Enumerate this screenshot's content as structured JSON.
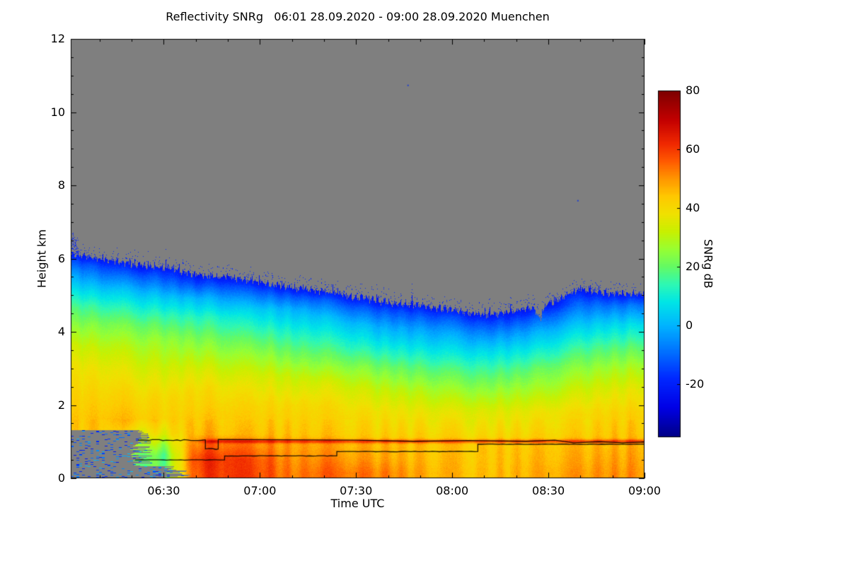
{
  "chart_data": {
    "type": "heatmap",
    "title": "Reflectivity SNRg   06:01 28.09.2020 - 09:00 28.09.2020 Muenchen",
    "x_axis": {
      "label": "Time UTC",
      "range_minutes": [
        361,
        540
      ],
      "tick_minutes": [
        390,
        420,
        450,
        480,
        510,
        540
      ],
      "tick_labels": [
        "06:30",
        "07:00",
        "07:30",
        "08:00",
        "08:30",
        "09:00"
      ],
      "minor_tick_step_minutes": 10
    },
    "y_axis": {
      "label": "Height km",
      "range_km": [
        0,
        12
      ],
      "tick_values": [
        0,
        2,
        4,
        6,
        8,
        10,
        12
      ],
      "minor_tick_step_km": 0.5
    },
    "colorbar": {
      "label": "SNRg dB",
      "range": [
        -38,
        80
      ],
      "tick_values": [
        -20,
        0,
        20,
        40,
        60,
        80
      ],
      "colormap_stops": [
        [
          -38,
          "#000085"
        ],
        [
          -28,
          "#0000E6"
        ],
        [
          -18,
          "#0028FF"
        ],
        [
          -8,
          "#0078FF"
        ],
        [
          0,
          "#00B4FF"
        ],
        [
          8,
          "#00E6E6"
        ],
        [
          14,
          "#2EF8B4"
        ],
        [
          20,
          "#64FA64"
        ],
        [
          26,
          "#98FF32"
        ],
        [
          32,
          "#C8F000"
        ],
        [
          38,
          "#F0E100"
        ],
        [
          44,
          "#FFC800"
        ],
        [
          50,
          "#FF9600"
        ],
        [
          56,
          "#FF5A00"
        ],
        [
          62,
          "#F02800"
        ],
        [
          70,
          "#C30000"
        ],
        [
          80,
          "#7D0000"
        ]
      ]
    },
    "nodata_color": "#7F7F7F",
    "nodata_regions": [
      {
        "t_minutes": [
          361,
          383
        ],
        "h_km": [
          0,
          1.3
        ]
      },
      {
        "t_minutes": [
          361,
          394
        ],
        "h_km": [
          0,
          0.32
        ]
      }
    ],
    "bright_band": {
      "h_km": 1.0,
      "halfwidth_km": 0.055,
      "amp_db": 14,
      "t_start_minutes": 399
    },
    "cloud_top_notch": {
      "t_minutes": 507.5,
      "depth_km": 0.35,
      "width_minutes": 1.2
    },
    "isolated_specks": [
      [
        466,
        10.75
      ],
      [
        519,
        7.6
      ]
    ],
    "columns": [
      {
        "t": 361,
        "top": 6.15,
        "profile": [
          [
            0.2,
            40
          ],
          [
            0.8,
            42
          ],
          [
            1.5,
            44
          ],
          [
            2.2,
            42
          ],
          [
            3.0,
            38
          ],
          [
            3.6,
            33
          ],
          [
            4.2,
            24
          ],
          [
            4.7,
            17
          ],
          [
            5.1,
            8
          ],
          [
            5.55,
            -2
          ],
          [
            5.9,
            -12
          ],
          [
            6.15,
            -22
          ]
        ]
      },
      {
        "t": 370,
        "top": 6.0,
        "profile": [
          [
            0.2,
            42
          ],
          [
            0.8,
            44
          ],
          [
            1.6,
            45
          ],
          [
            2.4,
            41
          ],
          [
            3.0,
            37
          ],
          [
            3.6,
            31
          ],
          [
            4.2,
            23
          ],
          [
            4.7,
            14
          ],
          [
            5.1,
            5
          ],
          [
            5.5,
            -6
          ],
          [
            5.8,
            -14
          ],
          [
            6.0,
            -22
          ]
        ]
      },
      {
        "t": 380,
        "top": 5.85,
        "profile": [
          [
            0.2,
            22
          ],
          [
            0.6,
            24
          ],
          [
            1.0,
            34
          ],
          [
            1.6,
            45
          ],
          [
            2.4,
            40
          ],
          [
            3.0,
            35
          ],
          [
            3.6,
            29
          ],
          [
            4.2,
            21
          ],
          [
            4.7,
            11
          ],
          [
            5.1,
            2
          ],
          [
            5.5,
            -10
          ],
          [
            5.85,
            -22
          ]
        ]
      },
      {
        "t": 390,
        "top": 5.75,
        "profile": [
          [
            0.2,
            20
          ],
          [
            0.6,
            18
          ],
          [
            0.9,
            26
          ],
          [
            1.2,
            36
          ],
          [
            1.6,
            42
          ],
          [
            2.2,
            40
          ],
          [
            3.0,
            33
          ],
          [
            3.8,
            25
          ],
          [
            4.4,
            15
          ],
          [
            4.9,
            4
          ],
          [
            5.3,
            -8
          ],
          [
            5.6,
            -16
          ],
          [
            5.75,
            -22
          ]
        ]
      },
      {
        "t": 400,
        "top": 5.55,
        "profile": [
          [
            0.15,
            58
          ],
          [
            0.5,
            60
          ],
          [
            0.9,
            54
          ],
          [
            1.2,
            47
          ],
          [
            1.8,
            43
          ],
          [
            2.4,
            40
          ],
          [
            3.0,
            34
          ],
          [
            3.8,
            23
          ],
          [
            4.4,
            13
          ],
          [
            4.9,
            1
          ],
          [
            5.25,
            -12
          ],
          [
            5.55,
            -22
          ]
        ]
      },
      {
        "t": 410,
        "top": 5.5,
        "profile": [
          [
            0.15,
            62
          ],
          [
            0.5,
            62
          ],
          [
            0.9,
            55
          ],
          [
            1.2,
            46
          ],
          [
            1.8,
            43
          ],
          [
            2.5,
            38
          ],
          [
            3.2,
            29
          ],
          [
            3.8,
            21
          ],
          [
            4.4,
            11
          ],
          [
            4.9,
            -2
          ],
          [
            5.25,
            -13
          ],
          [
            5.5,
            -22
          ]
        ]
      },
      {
        "t": 420,
        "top": 5.35,
        "profile": [
          [
            0.15,
            58
          ],
          [
            0.5,
            57
          ],
          [
            0.9,
            51
          ],
          [
            1.2,
            45
          ],
          [
            2.0,
            41
          ],
          [
            2.8,
            34
          ],
          [
            3.4,
            25
          ],
          [
            4.0,
            15
          ],
          [
            4.6,
            4
          ],
          [
            5.0,
            -9
          ],
          [
            5.2,
            -16
          ],
          [
            5.35,
            -22
          ]
        ]
      },
      {
        "t": 430,
        "top": 5.2,
        "profile": [
          [
            0.15,
            52
          ],
          [
            0.5,
            50
          ],
          [
            0.9,
            48
          ],
          [
            1.2,
            44
          ],
          [
            2.0,
            40
          ],
          [
            2.8,
            31
          ],
          [
            3.4,
            21
          ],
          [
            4.0,
            11
          ],
          [
            4.6,
            0
          ],
          [
            4.95,
            -12
          ],
          [
            5.2,
            -22
          ]
        ]
      },
      {
        "t": 440,
        "top": 5.1,
        "profile": [
          [
            0.15,
            55
          ],
          [
            0.5,
            52
          ],
          [
            0.9,
            48
          ],
          [
            1.2,
            44
          ],
          [
            2.0,
            40
          ],
          [
            2.6,
            34
          ],
          [
            3.2,
            23
          ],
          [
            3.8,
            13
          ],
          [
            4.4,
            2
          ],
          [
            4.85,
            -11
          ],
          [
            5.1,
            -22
          ]
        ]
      },
      {
        "t": 450,
        "top": 4.95,
        "profile": [
          [
            0.15,
            54
          ],
          [
            0.5,
            50
          ],
          [
            0.9,
            47
          ],
          [
            1.2,
            43
          ],
          [
            1.8,
            40
          ],
          [
            2.4,
            34
          ],
          [
            3.0,
            25
          ],
          [
            3.6,
            13
          ],
          [
            4.2,
            2
          ],
          [
            4.65,
            -11
          ],
          [
            4.95,
            -22
          ]
        ]
      },
      {
        "t": 460,
        "top": 4.8,
        "profile": [
          [
            0.15,
            52
          ],
          [
            0.5,
            48
          ],
          [
            0.9,
            46
          ],
          [
            1.2,
            42
          ],
          [
            1.8,
            38
          ],
          [
            2.4,
            31
          ],
          [
            3.0,
            21
          ],
          [
            3.6,
            9
          ],
          [
            4.1,
            -1
          ],
          [
            4.55,
            -13
          ],
          [
            4.8,
            -22
          ]
        ]
      },
      {
        "t": 470,
        "top": 4.72,
        "profile": [
          [
            0.15,
            48
          ],
          [
            0.5,
            46
          ],
          [
            0.9,
            45
          ],
          [
            1.2,
            42
          ],
          [
            1.8,
            37
          ],
          [
            2.4,
            29
          ],
          [
            3.0,
            19
          ],
          [
            3.6,
            7
          ],
          [
            4.1,
            -3
          ],
          [
            4.5,
            -14
          ],
          [
            4.72,
            -22
          ]
        ]
      },
      {
        "t": 480,
        "top": 4.6,
        "profile": [
          [
            0.15,
            46
          ],
          [
            0.5,
            45
          ],
          [
            0.9,
            44
          ],
          [
            1.2,
            41
          ],
          [
            1.8,
            36
          ],
          [
            2.4,
            27
          ],
          [
            3.0,
            17
          ],
          [
            3.5,
            7
          ],
          [
            4.0,
            -3
          ],
          [
            4.4,
            -14
          ],
          [
            4.6,
            -22
          ]
        ]
      },
      {
        "t": 490,
        "top": 4.45,
        "profile": [
          [
            0.15,
            45
          ],
          [
            0.5,
            44
          ],
          [
            0.9,
            44
          ],
          [
            1.2,
            40
          ],
          [
            1.8,
            35
          ],
          [
            2.4,
            25
          ],
          [
            3.0,
            15
          ],
          [
            3.5,
            5
          ],
          [
            3.9,
            -5
          ],
          [
            4.25,
            -15
          ],
          [
            4.45,
            -22
          ]
        ]
      },
      {
        "t": 500,
        "top": 4.55,
        "profile": [
          [
            0.15,
            46
          ],
          [
            0.5,
            45
          ],
          [
            0.9,
            44
          ],
          [
            1.2,
            41
          ],
          [
            1.8,
            36
          ],
          [
            2.4,
            27
          ],
          [
            3.0,
            17
          ],
          [
            3.5,
            7
          ],
          [
            4.0,
            -5
          ],
          [
            4.35,
            -15
          ],
          [
            4.55,
            -22
          ]
        ]
      },
      {
        "t": 510,
        "top": 4.75,
        "profile": [
          [
            0.15,
            48
          ],
          [
            0.5,
            46
          ],
          [
            0.9,
            45
          ],
          [
            1.2,
            42
          ],
          [
            1.8,
            38
          ],
          [
            2.4,
            29
          ],
          [
            3.0,
            21
          ],
          [
            3.5,
            11
          ],
          [
            4.0,
            1
          ],
          [
            4.5,
            -13
          ],
          [
            4.75,
            -22
          ]
        ]
      },
      {
        "t": 520,
        "top": 5.15,
        "profile": [
          [
            0.15,
            50
          ],
          [
            0.5,
            48
          ],
          [
            0.9,
            46
          ],
          [
            1.2,
            43
          ],
          [
            1.8,
            40
          ],
          [
            2.4,
            33
          ],
          [
            3.0,
            25
          ],
          [
            3.6,
            15
          ],
          [
            4.2,
            3
          ],
          [
            4.8,
            -11
          ],
          [
            5.15,
            -22
          ]
        ]
      },
      {
        "t": 530,
        "top": 5.05,
        "profile": [
          [
            0.15,
            50
          ],
          [
            0.5,
            48
          ],
          [
            0.9,
            46
          ],
          [
            1.2,
            44
          ],
          [
            1.8,
            41
          ],
          [
            2.4,
            35
          ],
          [
            3.0,
            27
          ],
          [
            3.6,
            17
          ],
          [
            4.2,
            5
          ],
          [
            4.7,
            -9
          ],
          [
            5.05,
            -22
          ]
        ]
      },
      {
        "t": 540,
        "top": 5.05,
        "profile": [
          [
            0.15,
            50
          ],
          [
            0.5,
            49
          ],
          [
            0.9,
            47
          ],
          [
            1.2,
            45
          ],
          [
            1.8,
            42
          ],
          [
            2.4,
            37
          ],
          [
            3.0,
            29
          ],
          [
            3.6,
            19
          ],
          [
            4.2,
            7
          ],
          [
            4.7,
            -7
          ],
          [
            5.05,
            -22
          ]
        ]
      }
    ],
    "melting_layer_lines": [
      {
        "name": "upper",
        "points": [
          [
            382,
            1.04
          ],
          [
            403,
            1.04
          ],
          [
            403,
            0.8
          ],
          [
            407,
            0.8
          ],
          [
            407,
            1.06
          ],
          [
            450,
            1.04
          ],
          [
            468,
            1.01
          ],
          [
            485,
            1.03
          ],
          [
            503,
            1.01
          ],
          [
            512,
            1.04
          ],
          [
            518,
            0.97
          ],
          [
            526,
            1.0
          ],
          [
            533,
            0.97
          ],
          [
            540,
            0.99
          ]
        ]
      },
      {
        "name": "lower",
        "points": [
          [
            381,
            0.5
          ],
          [
            409,
            0.5
          ],
          [
            409,
            0.61
          ],
          [
            444,
            0.61
          ],
          [
            444,
            0.73
          ],
          [
            488,
            0.73
          ],
          [
            488,
            0.93
          ],
          [
            540,
            0.93
          ]
        ]
      }
    ]
  }
}
